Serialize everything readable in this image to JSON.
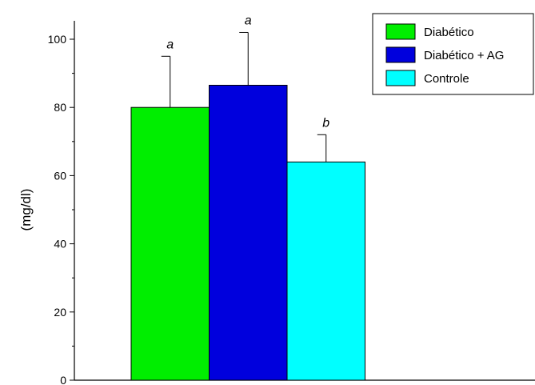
{
  "chart_data": {
    "type": "bar",
    "title": "",
    "xlabel": "",
    "ylabel": "(mg/dl)",
    "ylim": [
      0,
      100
    ],
    "yticks": [
      0,
      20,
      40,
      60,
      80,
      100
    ],
    "grid": false,
    "legend_position": "top-right",
    "series": [
      {
        "name": "Diabético",
        "value": 80,
        "error": 15,
        "significance": "a",
        "color": "#00ee00"
      },
      {
        "name": "Diabético + AG",
        "value": 86.5,
        "error": 15.5,
        "significance": "a",
        "color": "#0000dd"
      },
      {
        "name": "Controle",
        "value": 64,
        "error": 8,
        "significance": "b",
        "color": "#00ffff"
      }
    ]
  }
}
